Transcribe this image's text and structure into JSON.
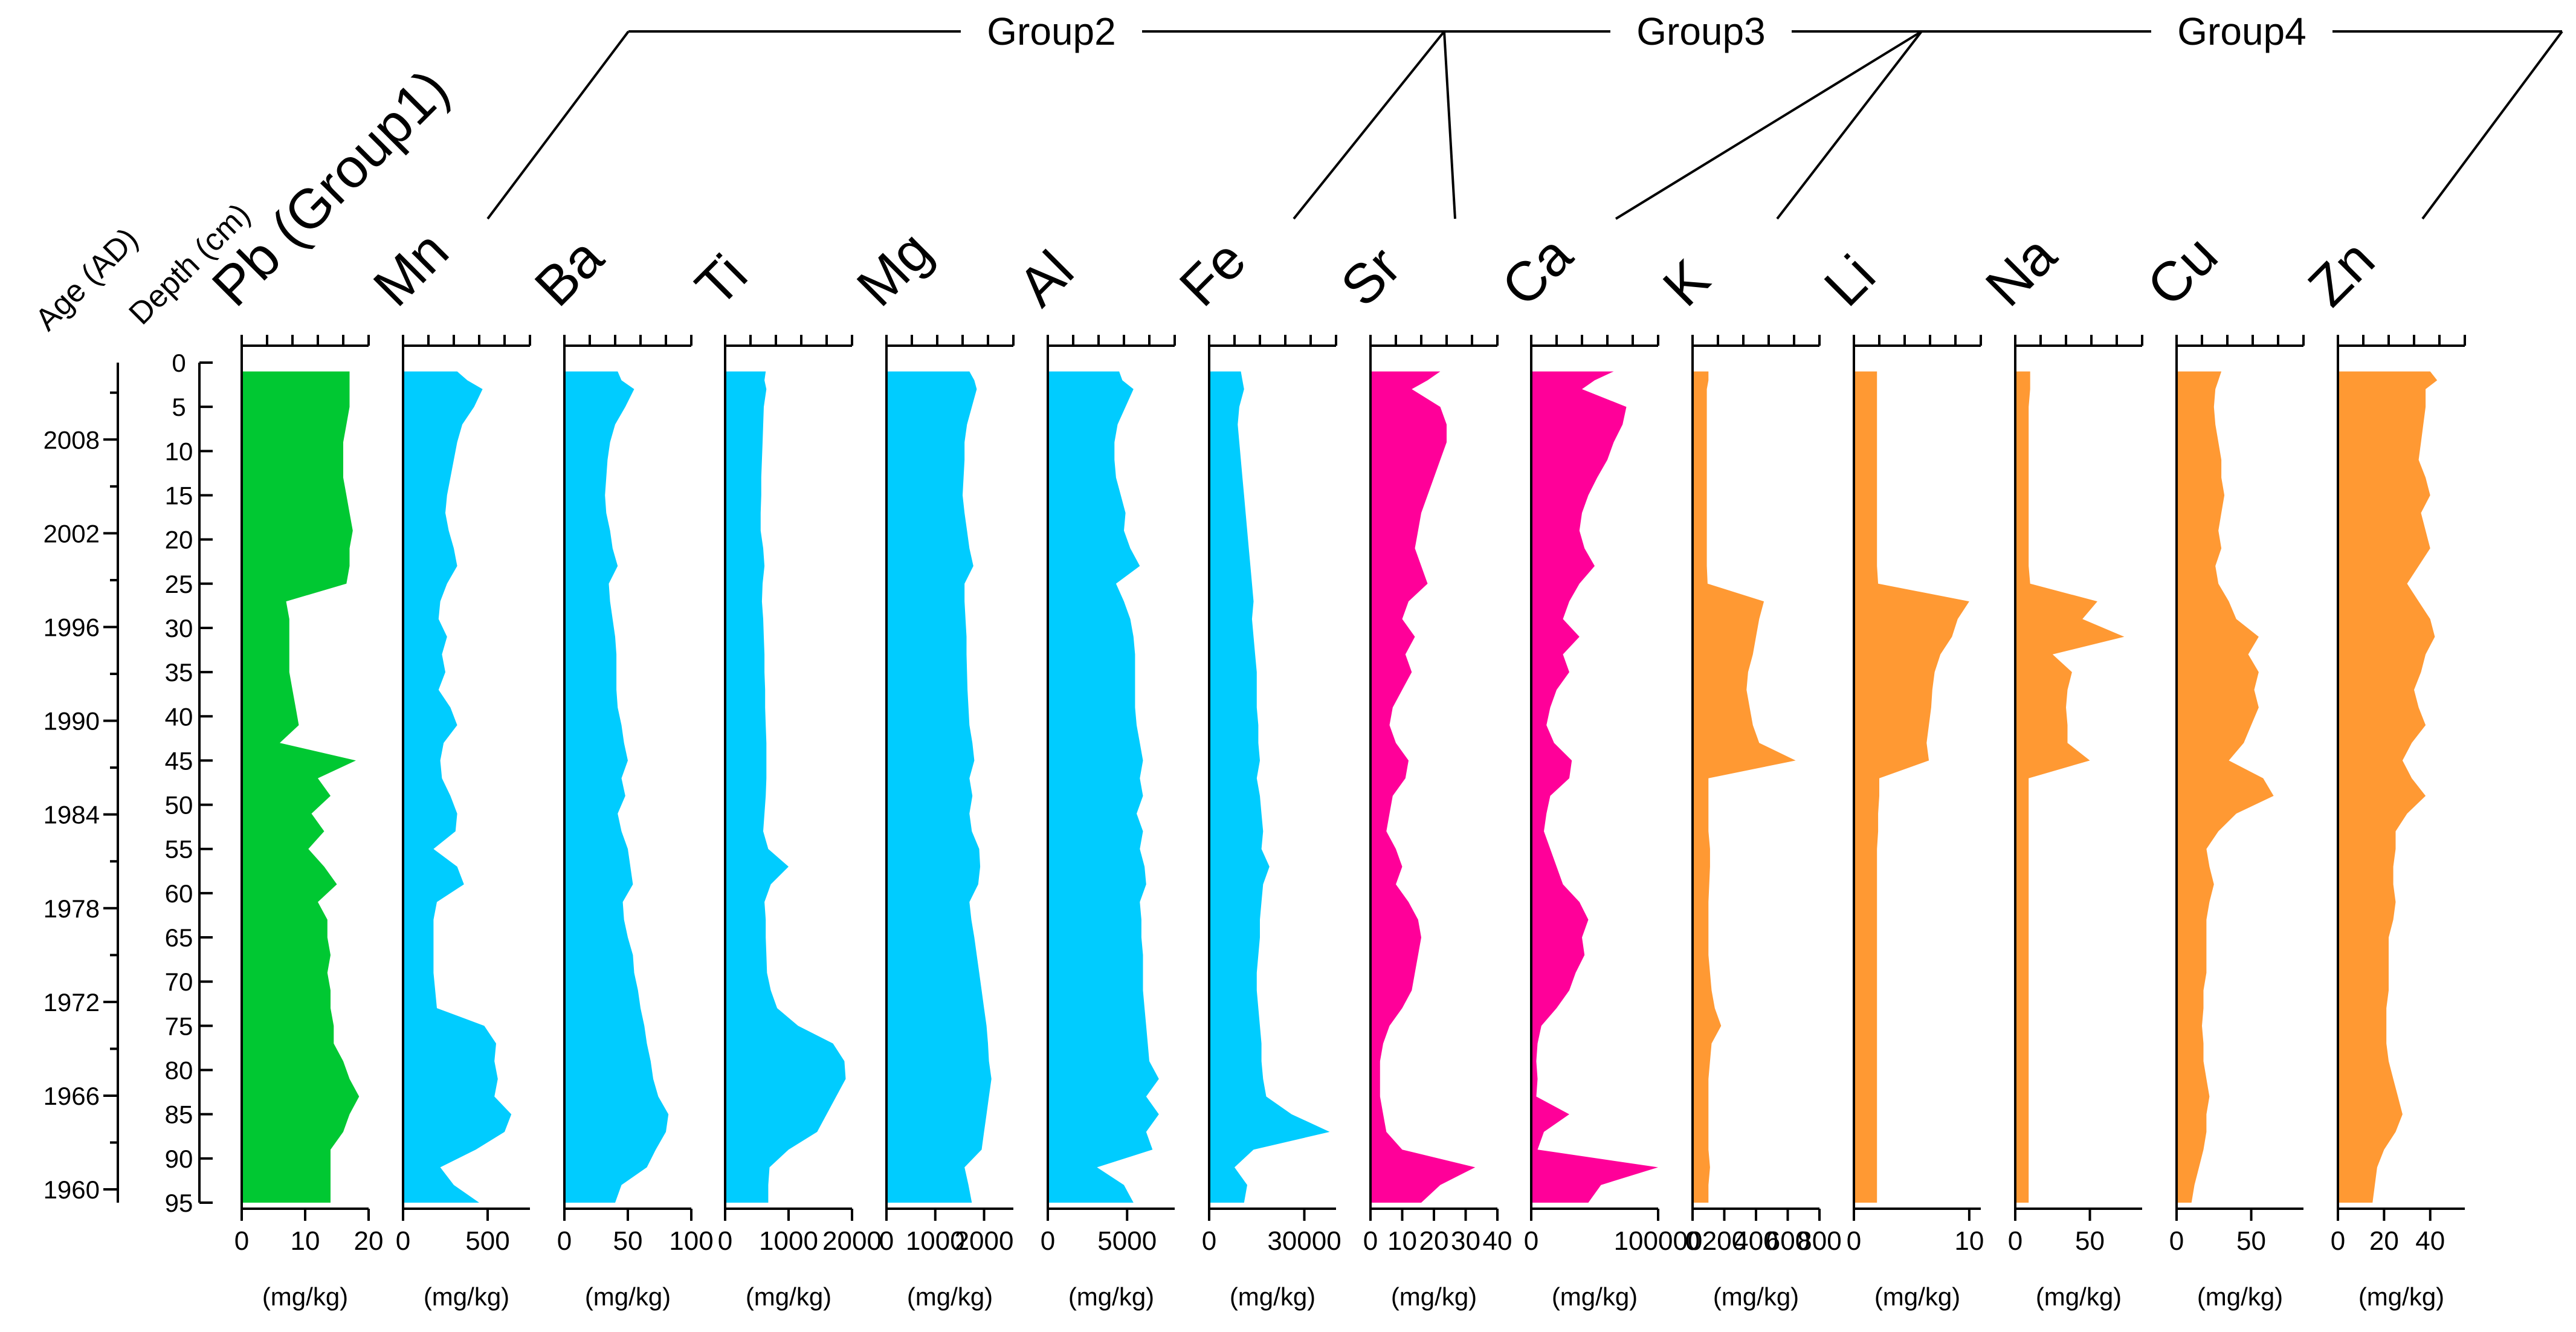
{
  "chart_data": {
    "type": "area",
    "depth_axis": {
      "title": "Depth (cm)",
      "range": [
        0,
        95
      ],
      "tick_labels": [
        "0",
        "5",
        "10",
        "15",
        "20",
        "25",
        "30",
        "35",
        "40",
        "45",
        "50",
        "55",
        "60",
        "65",
        "70",
        "75",
        "80",
        "85",
        "90",
        "95"
      ],
      "label_depths": [
        0,
        5,
        10,
        15,
        20,
        25,
        30,
        35,
        40,
        45,
        50,
        55,
        60,
        65,
        70,
        75,
        80,
        85,
        90,
        95
      ]
    },
    "age_axis": {
      "title": "Age (AD)",
      "labels": [
        "2008",
        "2002",
        "1996",
        "1990",
        "1984",
        "1978",
        "1972",
        "1966",
        "1960"
      ],
      "label_depths": [
        8.7,
        19.3,
        29.9,
        40.5,
        51.1,
        61.7,
        72.3,
        82.9,
        93.5
      ],
      "minor_depths": [
        3.4,
        14.0,
        24.6,
        35.2,
        45.8,
        56.4,
        67.0,
        77.6,
        88.2
      ]
    },
    "depths": [
      1,
      2,
      3,
      5,
      7,
      9,
      11,
      13,
      15,
      17,
      19,
      21,
      23,
      25,
      27,
      29,
      31,
      33,
      35,
      37,
      39,
      41,
      43,
      45,
      47,
      49,
      51,
      53,
      55,
      57,
      59,
      61,
      63,
      65,
      67,
      69,
      71,
      73,
      75,
      77,
      79,
      81,
      83,
      85,
      87,
      89,
      91,
      93,
      95
    ],
    "groups": [
      {
        "name": "Group2",
        "members": [
          "Mn",
          "Ba",
          "Ti",
          "Mg",
          "Al",
          "Fe"
        ]
      },
      {
        "name": "Group3",
        "members": [
          "Sr",
          "Ca"
        ]
      },
      {
        "name": "Group4",
        "members": [
          "K",
          "Li",
          "Na",
          "Cu",
          "Zn"
        ]
      }
    ],
    "series": [
      {
        "name": "Pb",
        "label": "Pb (Group1)",
        "color": "#00c832",
        "unit": "(mg/kg)",
        "xlim": [
          0,
          20
        ],
        "ticks": [
          0,
          10,
          20
        ],
        "tick_labels": [
          "0",
          "10",
          "20"
        ],
        "values": [
          17,
          17,
          17,
          17,
          16.5,
          16,
          16,
          16,
          16.5,
          17,
          17.5,
          17,
          17,
          16.5,
          7,
          7.5,
          7.5,
          7.5,
          7.5,
          8,
          8.5,
          9,
          6,
          18,
          12,
          14,
          11,
          13,
          10.5,
          13,
          15,
          12,
          13.5,
          13.5,
          14,
          13.5,
          14,
          14,
          14.5,
          14.5,
          16,
          17,
          18.5,
          17,
          16,
          14,
          14,
          14,
          14
        ]
      },
      {
        "name": "Mn",
        "label": "Mn",
        "color": "#00ccff",
        "unit": "(mg/kg)",
        "xlim": [
          0,
          750
        ],
        "ticks": [
          0,
          500
        ],
        "tick_labels": [
          "0",
          "500"
        ],
        "values": [
          320,
          380,
          470,
          420,
          350,
          320,
          300,
          280,
          260,
          250,
          270,
          300,
          320,
          260,
          220,
          210,
          260,
          230,
          250,
          210,
          280,
          320,
          240,
          220,
          230,
          280,
          320,
          310,
          180,
          320,
          360,
          200,
          180,
          180,
          180,
          180,
          190,
          200,
          480,
          550,
          540,
          560,
          540,
          640,
          600,
          430,
          220,
          300,
          450
        ]
      },
      {
        "name": "Ba",
        "label": "Ba",
        "color": "#00ccff",
        "unit": "(mg/kg)",
        "xlim": [
          0,
          100
        ],
        "ticks": [
          0,
          50,
          100
        ],
        "tick_labels": [
          "0",
          "50",
          "100"
        ],
        "values": [
          42,
          45,
          55,
          48,
          40,
          36,
          34,
          33,
          32,
          33,
          36,
          38,
          42,
          35,
          36,
          38,
          40,
          41,
          41,
          41,
          42,
          45,
          47,
          50,
          45,
          48,
          42,
          45,
          50,
          52,
          54,
          46,
          47,
          50,
          54,
          55,
          58,
          60,
          63,
          65,
          68,
          70,
          74,
          82,
          80,
          72,
          65,
          45,
          40
        ]
      },
      {
        "name": "Ti",
        "label": "Ti",
        "color": "#00ccff",
        "unit": "(mg/kg)",
        "xlim": [
          0,
          2000
        ],
        "ticks": [
          0,
          1000,
          2000
        ],
        "tick_labels": [
          "0",
          "1000",
          "2000"
        ],
        "values": [
          640,
          620,
          650,
          610,
          600,
          590,
          580,
          570,
          570,
          560,
          560,
          600,
          620,
          590,
          580,
          600,
          610,
          620,
          620,
          630,
          630,
          640,
          650,
          650,
          650,
          640,
          620,
          600,
          680,
          1000,
          720,
          620,
          640,
          640,
          650,
          660,
          720,
          820,
          1150,
          1700,
          1880,
          1900,
          1750,
          1600,
          1450,
          1000,
          700,
          680,
          680
        ]
      },
      {
        "name": "Mg",
        "label": "Mg",
        "color": "#00ccff",
        "unit": "(mg/kg)",
        "xlim": [
          0,
          2600
        ],
        "ticks": [
          0,
          1000,
          2000
        ],
        "tick_labels": [
          "0",
          "1000",
          "2000"
        ],
        "values": [
          1700,
          1800,
          1850,
          1750,
          1650,
          1600,
          1600,
          1580,
          1560,
          1600,
          1650,
          1700,
          1780,
          1600,
          1600,
          1620,
          1640,
          1640,
          1650,
          1660,
          1680,
          1700,
          1760,
          1800,
          1700,
          1760,
          1700,
          1750,
          1900,
          1920,
          1880,
          1700,
          1740,
          1800,
          1850,
          1900,
          1950,
          2000,
          2050,
          2080,
          2100,
          2150,
          2100,
          2050,
          2000,
          1950,
          1600,
          1680,
          1750
        ]
      },
      {
        "name": "Al",
        "label": "Al",
        "color": "#00ccff",
        "unit": "(mg/kg)",
        "xlim": [
          0,
          8000
        ],
        "ticks": [
          0,
          5000
        ],
        "tick_labels": [
          "0",
          "5000"
        ],
        "values": [
          4500,
          4700,
          5400,
          4900,
          4400,
          4200,
          4200,
          4300,
          4600,
          4900,
          4800,
          5200,
          5800,
          4300,
          4800,
          5200,
          5400,
          5500,
          5500,
          5500,
          5500,
          5600,
          5800,
          6000,
          5800,
          6000,
          5600,
          6000,
          5800,
          6100,
          6200,
          5800,
          5900,
          5900,
          6000,
          6000,
          6000,
          6100,
          6200,
          6300,
          6400,
          7000,
          6200,
          7000,
          6200,
          6600,
          3100,
          4800,
          5400
        ]
      },
      {
        "name": "Fe",
        "label": "Fe",
        "color": "#00ccff",
        "unit": "(mg/kg)",
        "xlim": [
          0,
          40000
        ],
        "ticks": [
          0,
          30000
        ],
        "tick_labels": [
          "0",
          "30000"
        ],
        "values": [
          10000,
          10500,
          11000,
          9500,
          9000,
          9500,
          10000,
          10500,
          11000,
          11500,
          12000,
          12500,
          13000,
          13500,
          14000,
          13500,
          14000,
          14500,
          15000,
          15000,
          15000,
          15500,
          15500,
          16000,
          15000,
          16000,
          16500,
          17000,
          16500,
          19000,
          17000,
          16500,
          16000,
          16000,
          15500,
          15000,
          15000,
          15500,
          16000,
          16500,
          16500,
          17000,
          18000,
          26000,
          38000,
          14000,
          8000,
          12000,
          11000
        ]
      },
      {
        "name": "Sr",
        "label": "Sr",
        "color": "#ff0099",
        "unit": "(mg/kg)",
        "xlim": [
          0,
          40
        ],
        "ticks": [
          0,
          10,
          20,
          30,
          40
        ],
        "tick_labels": [
          "0",
          "10",
          "20",
          "30",
          "40"
        ],
        "values": [
          22,
          18,
          13,
          22,
          24,
          24,
          22,
          20,
          18,
          16,
          15,
          14,
          16,
          18,
          12,
          10,
          14,
          11,
          13,
          10,
          7,
          6,
          8,
          12,
          11,
          7,
          6,
          5,
          8,
          10,
          8,
          12,
          15,
          16,
          15,
          14,
          13,
          10,
          6,
          4,
          3,
          3,
          3,
          4,
          5,
          10,
          33,
          22,
          16
        ]
      },
      {
        "name": "Ca",
        "label": "Ca",
        "color": "#ff0099",
        "unit": "(mg/kg)",
        "xlim": [
          0,
          100000
        ],
        "ticks": [
          0,
          100000
        ],
        "tick_labels": [
          "0",
          "100000"
        ],
        "values": [
          65000,
          50000,
          40000,
          75000,
          72000,
          65000,
          60000,
          52000,
          45000,
          40000,
          38000,
          42000,
          50000,
          38000,
          30000,
          25000,
          38000,
          25000,
          30000,
          20000,
          15000,
          12000,
          18000,
          32000,
          30000,
          15000,
          12000,
          10000,
          15000,
          20000,
          25000,
          38000,
          45000,
          40000,
          42000,
          35000,
          30000,
          20000,
          8000,
          5000,
          4000,
          5000,
          4000,
          30000,
          10000,
          5000,
          100000,
          55000,
          45000
        ]
      },
      {
        "name": "K",
        "label": "K",
        "color": "#ff9933",
        "unit": "(mg/kg)",
        "xlim": [
          0,
          800
        ],
        "ticks": [
          0,
          200,
          400,
          600,
          800
        ],
        "tick_labels": [
          "0",
          "200",
          "400",
          "600",
          "800"
        ],
        "values": [
          100,
          100,
          90,
          90,
          90,
          90,
          90,
          90,
          90,
          90,
          90,
          90,
          90,
          95,
          450,
          420,
          400,
          380,
          350,
          340,
          360,
          380,
          420,
          650,
          100,
          100,
          100,
          100,
          110,
          110,
          105,
          100,
          100,
          100,
          100,
          110,
          120,
          140,
          180,
          120,
          110,
          100,
          100,
          100,
          100,
          100,
          110,
          100,
          100
        ]
      },
      {
        "name": "Li",
        "label": "Li",
        "color": "#ff9933",
        "unit": "(mg/kg)",
        "xlim": [
          0,
          11
        ],
        "ticks": [
          0,
          10
        ],
        "tick_labels": [
          "0",
          "10"
        ],
        "values": [
          2,
          2,
          2,
          2,
          2,
          2,
          2,
          2,
          2,
          2,
          2,
          2,
          2,
          2.1,
          10,
          9,
          8.5,
          7.5,
          7,
          6.8,
          6.7,
          6.5,
          6.3,
          6.5,
          2.2,
          2.2,
          2.1,
          2.1,
          2,
          2,
          2,
          2,
          2,
          2,
          2,
          2,
          2,
          2,
          2,
          2,
          2,
          2,
          2,
          2,
          2,
          2,
          2,
          2,
          2
        ]
      },
      {
        "name": "Na",
        "label": "Na",
        "color": "#ff9933",
        "unit": "(mg/kg)",
        "xlim": [
          0,
          85
        ],
        "ticks": [
          0,
          50
        ],
        "tick_labels": [
          "0",
          "50"
        ],
        "values": [
          10,
          10,
          10,
          9,
          9,
          9,
          9,
          9,
          9,
          9,
          9,
          9,
          9,
          10,
          55,
          45,
          73,
          25,
          38,
          35,
          34,
          35,
          35,
          50,
          9,
          9,
          9,
          9,
          9,
          9,
          9,
          9,
          9,
          9,
          9,
          9,
          9,
          9,
          9,
          9,
          9,
          9,
          9,
          9,
          9,
          9,
          9,
          9,
          9
        ]
      },
      {
        "name": "Cu",
        "label": "Cu",
        "color": "#ff9933",
        "unit": "(mg/kg)",
        "xlim": [
          0,
          85
        ],
        "ticks": [
          0,
          50
        ],
        "tick_labels": [
          "0",
          "50"
        ],
        "values": [
          30,
          28,
          26,
          25,
          26,
          28,
          30,
          30,
          32,
          30,
          28,
          30,
          26,
          28,
          35,
          40,
          55,
          48,
          55,
          52,
          55,
          50,
          45,
          35,
          58,
          65,
          40,
          28,
          20,
          22,
          25,
          22,
          20,
          20,
          20,
          20,
          18,
          18,
          17,
          18,
          18,
          20,
          22,
          20,
          20,
          18,
          15,
          12,
          10
        ]
      },
      {
        "name": "Zn",
        "label": "Zn",
        "color": "#ff9933",
        "unit": "(mg/kg)",
        "xlim": [
          0,
          55
        ],
        "ticks": [
          0,
          20,
          40
        ],
        "tick_labels": [
          "0",
          "20",
          "40"
        ],
        "values": [
          40,
          43,
          38,
          38,
          37,
          36,
          35,
          38,
          40,
          36,
          38,
          40,
          35,
          30,
          35,
          40,
          42,
          38,
          36,
          33,
          35,
          38,
          32,
          28,
          32,
          38,
          30,
          25,
          25,
          24,
          24,
          25,
          24,
          22,
          22,
          22,
          22,
          21,
          21,
          21,
          22,
          24,
          26,
          28,
          25,
          20,
          17,
          16,
          15
        ]
      }
    ]
  }
}
